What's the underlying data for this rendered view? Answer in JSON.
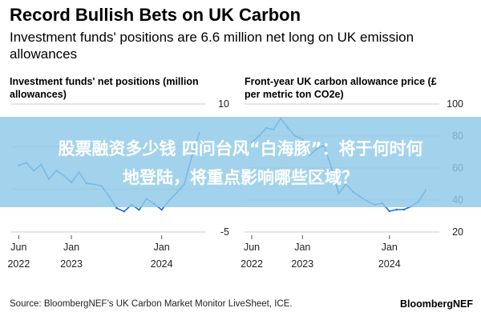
{
  "header": {
    "title": "Record Bullish Bets on UK Carbon",
    "subtitle": "Investment funds' positions are 6.6 million net long on UK emission allowances"
  },
  "footer": {
    "source": "Source: BloombergNEF’s UK Carbon Market Monitor LiveSheet, ICE.",
    "brand": "BloombergNEF"
  },
  "banner": {
    "line1": "股票融资多少钱 四问台风“白海豚”：将于何时何",
    "line2": "地登陆，将重点影响哪些区域？"
  },
  "colors": {
    "line": "#1a6fd1",
    "grid": "#cccccc",
    "banner": "#8fc9e8"
  },
  "chart_data": [
    {
      "type": "line",
      "title": "Investment funds' net positions (million allowances)",
      "ylim": [
        -5,
        10
      ],
      "yticks": [
        10,
        5,
        0,
        -5
      ],
      "ytick_labels": [
        "10",
        "",
        "",
        "-5"
      ],
      "xticks": [
        {
          "date": "2022-06",
          "line1": "Jun",
          "line2": "2022"
        },
        {
          "date": "2023-01",
          "line1": "Jan",
          "line2": "2023"
        },
        {
          "date": "2024-01",
          "line1": "Jan",
          "line2": "2024"
        }
      ],
      "series": [
        {
          "x": [
            "2022-06",
            "2022-07",
            "2022-08",
            "2022-09",
            "2022-10",
            "2022-11",
            "2022-12",
            "2023-01",
            "2023-02",
            "2023-03",
            "2023-04",
            "2023-05",
            "2023-06",
            "2023-07",
            "2023-08",
            "2023-09",
            "2023-10",
            "2023-11",
            "2023-12",
            "2024-01",
            "2024-02",
            "2024-03",
            "2024-04",
            "2024-05",
            "2024-06"
          ],
          "y": [
            2.8,
            3.1,
            2.2,
            2.9,
            1.2,
            2.2,
            1.6,
            0.8,
            2.0,
            0.7,
            0.6,
            0.4,
            -0.8,
            -2.2,
            -2.6,
            -1.8,
            -2.4,
            -1.1,
            -1.7,
            -2.4,
            -1.3,
            -0.4,
            0.6,
            3.8,
            6.6
          ]
        }
      ]
    },
    {
      "type": "line",
      "title": "Front-year UK carbon allowance price (£ per metric ton CO2e)",
      "ylim": [
        20,
        100
      ],
      "yticks": [
        100,
        80,
        60,
        40,
        20
      ],
      "ytick_labels": [
        "100",
        "80",
        "60",
        "40",
        "20"
      ],
      "xticks": [
        {
          "date": "2022-06",
          "line1": "Jun",
          "line2": "2022"
        },
        {
          "date": "2023-01",
          "line1": "Jan",
          "line2": "2023"
        },
        {
          "date": "2024-01",
          "line1": "Jan",
          "line2": "2024"
        }
      ],
      "series": [
        {
          "x": [
            "2022-06",
            "2022-07",
            "2022-08",
            "2022-09",
            "2022-10",
            "2022-11",
            "2022-12",
            "2023-01",
            "2023-02",
            "2023-03",
            "2023-04",
            "2023-05",
            "2023-06",
            "2023-07",
            "2023-08",
            "2023-09",
            "2023-10",
            "2023-11",
            "2023-12",
            "2024-01",
            "2024-02",
            "2024-03",
            "2024-04",
            "2024-05",
            "2024-06"
          ],
          "y": [
            76,
            80,
            85,
            84,
            91,
            85,
            80,
            78,
            68,
            72,
            74,
            60,
            44,
            50,
            45,
            42,
            39,
            37,
            38,
            33,
            34,
            34,
            36,
            39,
            46
          ]
        }
      ]
    }
  ]
}
